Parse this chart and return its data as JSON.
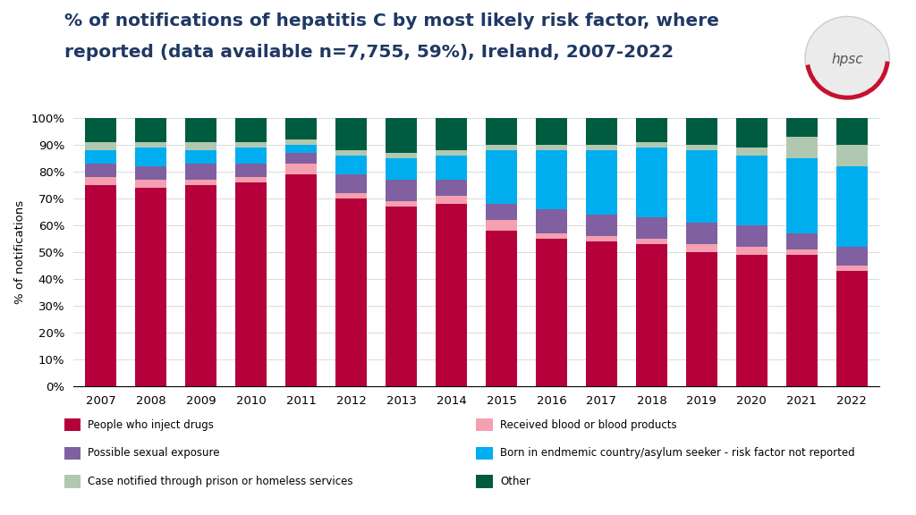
{
  "title_line1": "% of notifications of hepatitis C by most likely risk factor, where",
  "title_line2": "reported (data available n=7,755, 59%), Ireland, 2007-2022",
  "ylabel": "% of notifications",
  "years": [
    2007,
    2008,
    2009,
    2010,
    2011,
    2012,
    2013,
    2014,
    2015,
    2016,
    2017,
    2018,
    2019,
    2020,
    2021,
    2022
  ],
  "categories": [
    "People who inject drugs",
    "Received blood or blood products",
    "Possible sexual exposure",
    "Born in endmemic country/asylum seeker - risk factor not reported",
    "Case notified through prison or homeless services",
    "Other"
  ],
  "colors": [
    "#B5003C",
    "#F4A0B0",
    "#8060A0",
    "#00AEEF",
    "#B0C8B0",
    "#005C40"
  ],
  "data": {
    "People who inject drugs": [
      75,
      74,
      75,
      76,
      79,
      70,
      67,
      68,
      58,
      55,
      54,
      53,
      50,
      49,
      49,
      43
    ],
    "Received blood or blood products": [
      3,
      3,
      2,
      2,
      4,
      2,
      2,
      3,
      4,
      2,
      2,
      2,
      3,
      3,
      2,
      2
    ],
    "Possible sexual exposure": [
      5,
      5,
      6,
      5,
      4,
      7,
      8,
      6,
      6,
      9,
      8,
      8,
      8,
      8,
      6,
      7
    ],
    "Born in endmemic country/asylum seeker - risk factor not reported": [
      5,
      7,
      5,
      6,
      3,
      7,
      8,
      9,
      20,
      22,
      24,
      26,
      27,
      26,
      28,
      30
    ],
    "Case notified through prison or homeless services": [
      3,
      2,
      3,
      2,
      2,
      2,
      2,
      2,
      2,
      2,
      2,
      2,
      2,
      3,
      8,
      8
    ],
    "Other": [
      9,
      9,
      9,
      9,
      8,
      12,
      13,
      12,
      10,
      10,
      10,
      9,
      10,
      11,
      7,
      10
    ]
  },
  "background_color": "#FFFFFF",
  "yticks": [
    0,
    10,
    20,
    30,
    40,
    50,
    60,
    70,
    80,
    90,
    100
  ],
  "ytick_labels": [
    "0%",
    "10%",
    "20%",
    "30%",
    "40%",
    "50%",
    "60%",
    "70%",
    "80%",
    "90%",
    "100%"
  ],
  "title_color": "#1F3864",
  "title_fontsize": 14.5,
  "axis_fontsize": 9.5,
  "tick_fontsize": 9.5,
  "legend_fontsize": 8.5,
  "bar_width": 0.62,
  "bottom_bar_color": "#C8102E",
  "bottom_bar_height": 0.055
}
